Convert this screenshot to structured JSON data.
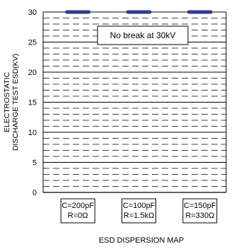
{
  "chart_data": {
    "type": "scatter",
    "title": "",
    "xlabel": "ESD DISPERSION MAP",
    "ylabel_lines": [
      "ELECTROSTATIC",
      "DISCHARGE TEST ESD(KV)"
    ],
    "ylim": [
      0,
      30
    ],
    "yticks": [
      "0",
      "5",
      "10",
      "15",
      "20",
      "25",
      "30"
    ],
    "minor_grid_step": 1,
    "grid": true,
    "annotation": "No break at 30kV",
    "categories": [
      {
        "lines": [
          "C=200pF",
          "R=0Ω"
        ]
      },
      {
        "lines": [
          "C=100pF",
          "R=1.5kΩ"
        ]
      },
      {
        "lines": [
          "C=150pF",
          "R=330Ω"
        ]
      }
    ],
    "values": [
      30,
      30,
      30
    ],
    "marker_color": "#2e3a8c",
    "grid_color": "#000000"
  }
}
